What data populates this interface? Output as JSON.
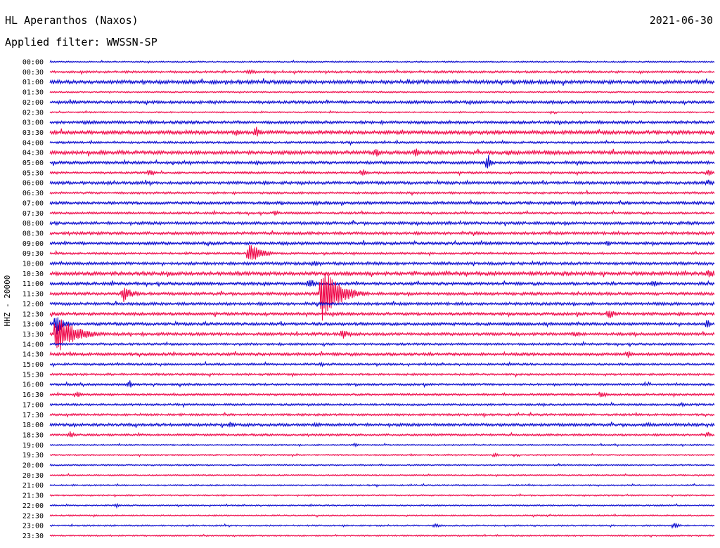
{
  "header": {
    "station": "HL Aperanthos (Naxos)",
    "date": "2021-06-30",
    "filter": "Applied filter: WWSSN-SP"
  },
  "colors": {
    "trace_a": "#0000cc",
    "trace_b": "#ee0044"
  },
  "chart_data": {
    "type": "line",
    "subtype": "helicorder",
    "ylabel": "HHZ - 20000",
    "row_labels": [
      "00:00",
      "00:30",
      "01:00",
      "01:30",
      "02:00",
      "02:30",
      "03:00",
      "03:30",
      "04:00",
      "04:30",
      "05:00",
      "05:30",
      "06:00",
      "06:30",
      "07:00",
      "07:30",
      "08:00",
      "08:30",
      "09:00",
      "09:30",
      "10:00",
      "10:30",
      "11:00",
      "11:30",
      "12:00",
      "12:30",
      "13:00",
      "13:30",
      "14:00",
      "14:30",
      "15:00",
      "15:30",
      "16:00",
      "16:30",
      "17:00",
      "17:30",
      "18:00",
      "18:30",
      "19:00",
      "19:30",
      "20:00",
      "20:30",
      "21:00",
      "21:30",
      "22:00",
      "22:30",
      "23:00",
      "23:30"
    ],
    "color_cycle": [
      "trace_a",
      "trace_b"
    ],
    "noise_level": [
      1,
      1.5,
      2.5,
      1,
      2,
      1,
      2,
      2.5,
      1.5,
      2.5,
      2,
      1.5,
      2,
      1.5,
      2,
      1.5,
      2,
      2,
      2,
      1.5,
      2,
      2.5,
      2,
      2,
      2,
      2,
      2,
      2,
      1.5,
      2,
      1.5,
      1.5,
      1.5,
      1.5,
      1.5,
      1.5,
      2,
      1.5,
      1,
      1,
      1,
      1,
      1,
      1,
      1,
      1,
      1,
      1
    ],
    "events": [
      {
        "row": 1,
        "x": 0.3,
        "amp": 4,
        "dur": 0.04
      },
      {
        "row": 2,
        "x": 0.005,
        "amp": 3,
        "dur": 0.02
      },
      {
        "row": 6,
        "x": 0.05,
        "amp": 3,
        "dur": 0.05
      },
      {
        "row": 6,
        "x": 0.15,
        "amp": 3,
        "dur": 0.05
      },
      {
        "row": 6,
        "x": 0.95,
        "amp": 3,
        "dur": 0.02
      },
      {
        "row": 7,
        "x": 0.28,
        "amp": 6,
        "dur": 0.03
      },
      {
        "row": 7,
        "x": 0.31,
        "amp": 10,
        "dur": 0.02
      },
      {
        "row": 9,
        "x": 0.49,
        "amp": 9,
        "dur": 0.02
      },
      {
        "row": 9,
        "x": 0.55,
        "amp": 8,
        "dur": 0.02
      },
      {
        "row": 9,
        "x": 0.69,
        "amp": 5,
        "dur": 0.02
      },
      {
        "row": 9,
        "x": 0.75,
        "amp": 5,
        "dur": 0.02
      },
      {
        "row": 10,
        "x": 0.66,
        "amp": 14,
        "dur": 0.01
      },
      {
        "row": 11,
        "x": 0.15,
        "amp": 6,
        "dur": 0.02
      },
      {
        "row": 11,
        "x": 0.47,
        "amp": 7,
        "dur": 0.02
      },
      {
        "row": 11,
        "x": 0.99,
        "amp": 6,
        "dur": 0.02
      },
      {
        "row": 12,
        "x": 0.99,
        "amp": 5,
        "dur": 0.02
      },
      {
        "row": 14,
        "x": 0.4,
        "amp": 5,
        "dur": 0.02
      },
      {
        "row": 14,
        "x": 0.79,
        "amp": 4,
        "dur": 0.02
      },
      {
        "row": 15,
        "x": 0.34,
        "amp": 6,
        "dur": 0.01
      },
      {
        "row": 18,
        "x": 0.35,
        "amp": 4,
        "dur": 0.02
      },
      {
        "row": 18,
        "x": 0.84,
        "amp": 6,
        "dur": 0.01
      },
      {
        "row": 19,
        "x": 0.3,
        "amp": 16,
        "dur": 0.05
      },
      {
        "row": 20,
        "x": 0.4,
        "amp": 6,
        "dur": 0.01
      },
      {
        "row": 21,
        "x": 0.99,
        "amp": 8,
        "dur": 0.04
      },
      {
        "row": 22,
        "x": 0.39,
        "amp": 8,
        "dur": 0.03
      },
      {
        "row": 22,
        "x": 0.91,
        "amp": 6,
        "dur": 0.02
      },
      {
        "row": 23,
        "x": 0.11,
        "amp": 13,
        "dur": 0.04
      },
      {
        "row": 23,
        "x": 0.41,
        "amp": 45,
        "dur": 0.07
      },
      {
        "row": 25,
        "x": 0.84,
        "amp": 9,
        "dur": 0.03
      },
      {
        "row": 26,
        "x": 0.01,
        "amp": 16,
        "dur": 0.03
      },
      {
        "row": 26,
        "x": 0.99,
        "amp": 10,
        "dur": 0.01
      },
      {
        "row": 27,
        "x": 0.01,
        "amp": 30,
        "dur": 0.08
      },
      {
        "row": 27,
        "x": 0.44,
        "amp": 8,
        "dur": 0.03
      },
      {
        "row": 27,
        "x": 0.79,
        "amp": 5,
        "dur": 0.03
      },
      {
        "row": 29,
        "x": 0.87,
        "amp": 6,
        "dur": 0.02
      },
      {
        "row": 30,
        "x": 0.41,
        "amp": 4,
        "dur": 0.01
      },
      {
        "row": 32,
        "x": 0.12,
        "amp": 7,
        "dur": 0.01
      },
      {
        "row": 33,
        "x": 0.04,
        "amp": 6,
        "dur": 0.02
      },
      {
        "row": 33,
        "x": 0.83,
        "amp": 7,
        "dur": 0.02
      },
      {
        "row": 34,
        "x": 0.95,
        "amp": 4,
        "dur": 0.02
      },
      {
        "row": 36,
        "x": 0.27,
        "amp": 5,
        "dur": 0.02
      },
      {
        "row": 36,
        "x": 0.4,
        "amp": 5,
        "dur": 0.02
      },
      {
        "row": 36,
        "x": 0.9,
        "amp": 4,
        "dur": 0.03
      },
      {
        "row": 37,
        "x": 0.03,
        "amp": 6,
        "dur": 0.02
      },
      {
        "row": 37,
        "x": 0.99,
        "amp": 6,
        "dur": 0.01
      },
      {
        "row": 38,
        "x": 0.46,
        "amp": 4,
        "dur": 0.01
      },
      {
        "row": 39,
        "x": 0.67,
        "amp": 5,
        "dur": 0.01
      },
      {
        "row": 44,
        "x": 0.1,
        "amp": 4,
        "dur": 0.01
      },
      {
        "row": 46,
        "x": 0.58,
        "amp": 3,
        "dur": 0.03
      },
      {
        "row": 46,
        "x": 0.94,
        "amp": 5,
        "dur": 0.02
      }
    ]
  }
}
